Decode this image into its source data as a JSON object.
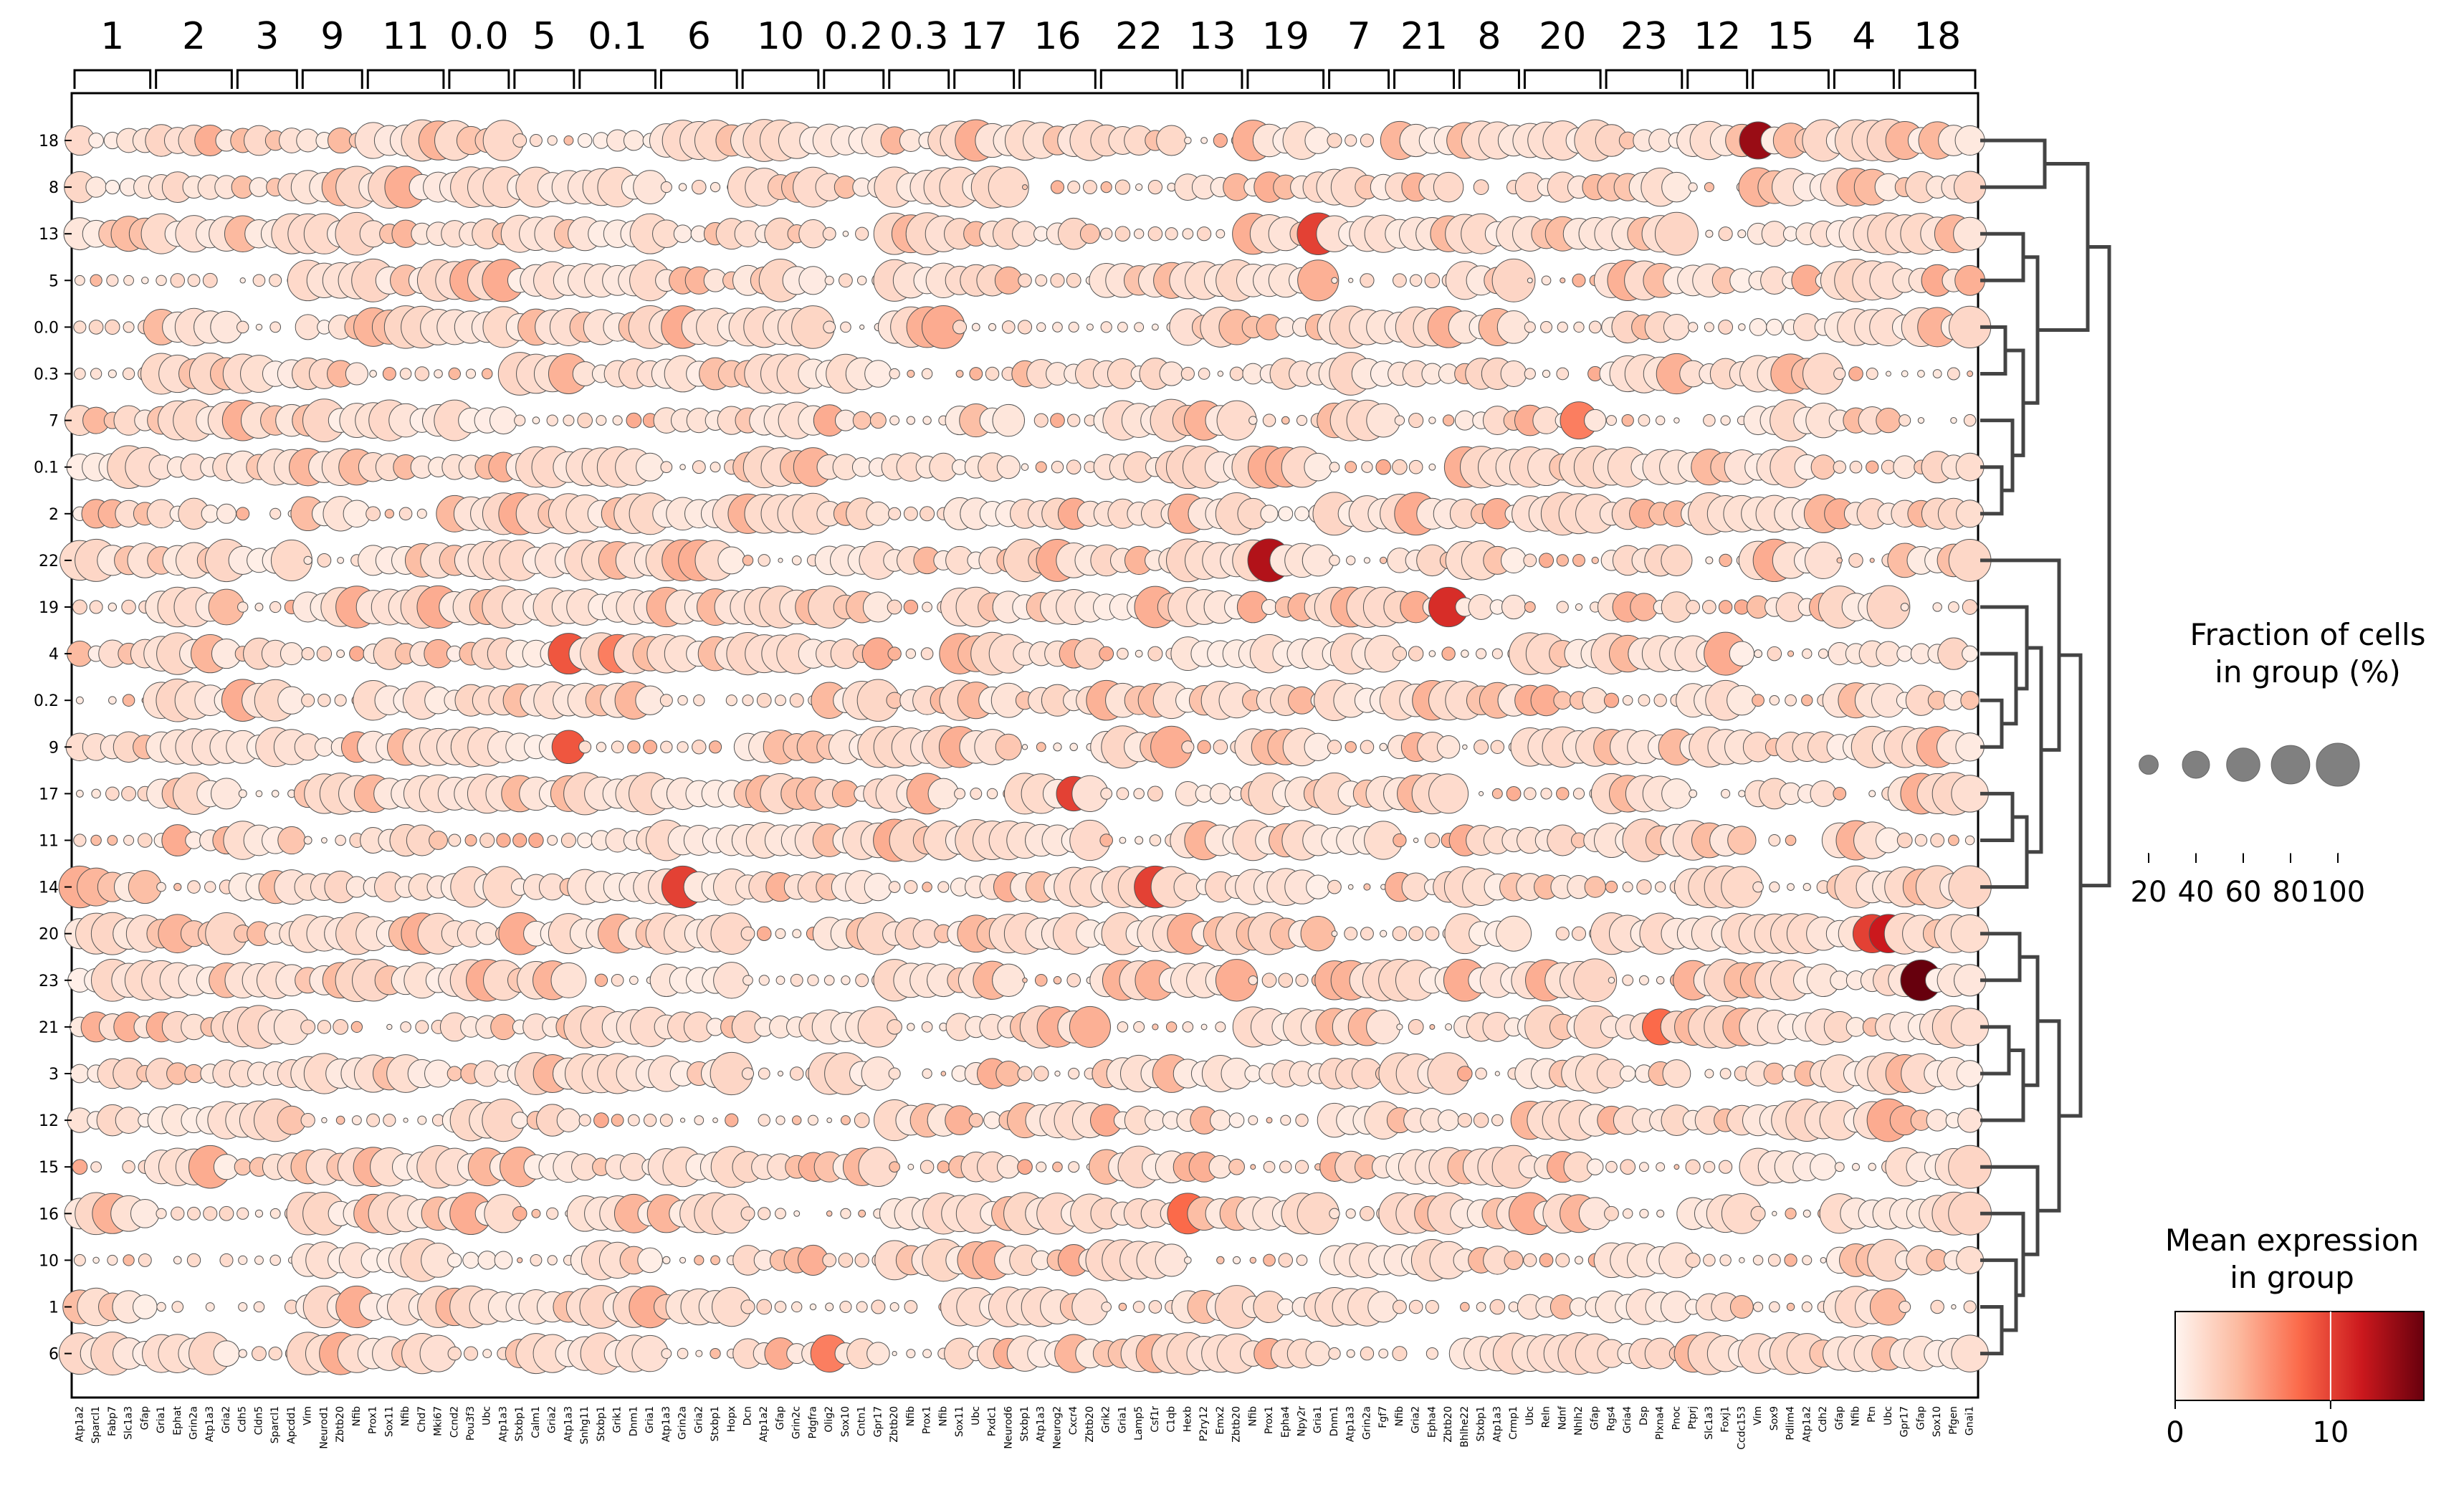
{
  "chart_data": {
    "type": "dotplot",
    "colormap": "Reds",
    "groups": [
      {
        "label": "1",
        "genes": [
          "Atp1a2",
          "Sparcl1",
          "Fabp7",
          "Slc1a3",
          "Gfap"
        ]
      },
      {
        "label": "2",
        "genes": [
          "Gria1",
          "Ephat",
          "Grin2a",
          "Atp1a3",
          "Gria2"
        ]
      },
      {
        "label": "3",
        "genes": [
          "Cdh5",
          "Cldn5",
          "Sparcl1",
          "Apcdd1"
        ]
      },
      {
        "label": "9",
        "genes": [
          "Vim",
          "Neurod1",
          "Zbtb20",
          "Nfib"
        ]
      },
      {
        "label": "11",
        "genes": [
          "Prox1",
          "Sox11",
          "Nfib",
          "Chd7",
          "Mki67"
        ]
      },
      {
        "label": "0.0",
        "genes": [
          "Ccnd2",
          "Pou3f3",
          "Ubc",
          "Atp1a3"
        ]
      },
      {
        "label": "5",
        "genes": [
          "Stxbp1",
          "Calm1",
          "Gria2",
          "Atp1a3"
        ]
      },
      {
        "label": "0.1",
        "genes": [
          "Snhg11",
          "Stxbp1",
          "Grik1",
          "Dnm1",
          "Gria1"
        ]
      },
      {
        "label": "6",
        "genes": [
          "Atp1a3",
          "Grin2a",
          "Gria2",
          "Stxbp1",
          "Hopx"
        ]
      },
      {
        "label": "10",
        "genes": [
          "Dcn",
          "Atp1a2",
          "Gfap",
          "Grin2c",
          "Pdgfra"
        ]
      },
      {
        "label": "0.2",
        "genes": [
          "Olig2",
          "Sox10",
          "Cntn1",
          "Gpr17"
        ]
      },
      {
        "label": "0.3",
        "genes": [
          "Zbtb20",
          "Nfib",
          "Prox1",
          "Nfib"
        ]
      },
      {
        "label": "17",
        "genes": [
          "Sox11",
          "Ubc",
          "Pxdc1",
          "Neurod6"
        ]
      },
      {
        "label": "16",
        "genes": [
          "Stxbp1",
          "Atp1a3",
          "Neurog2",
          "Cxcr4",
          "Zbtb20"
        ]
      },
      {
        "label": "22",
        "genes": [
          "Grik2",
          "Gria1",
          "Lamp5",
          "Csf1r",
          "C1qb"
        ]
      },
      {
        "label": "13",
        "genes": [
          "Hexb",
          "P2ry12",
          "Emx2",
          "Zbtb20"
        ]
      },
      {
        "label": "19",
        "genes": [
          "Nfib",
          "Prox1",
          "Epha4",
          "Npy2r",
          "Gria1"
        ]
      },
      {
        "label": "7",
        "genes": [
          "Dnm1",
          "Atp1a3",
          "Grin2a",
          "Fgf7"
        ]
      },
      {
        "label": "21",
        "genes": [
          "Nfib",
          "Gria2",
          "Epha4",
          "Zbtb20"
        ]
      },
      {
        "label": "8",
        "genes": [
          "Bhlhe22",
          "Stxbp1",
          "Atp1a3",
          "Crmp1"
        ]
      },
      {
        "label": "20",
        "genes": [
          "Ubc",
          "Reln",
          "Ndnf",
          "Nhlh2",
          "Gfap"
        ]
      },
      {
        "label": "23",
        "genes": [
          "Rgs4",
          "Gria4",
          "Dsp",
          "Plxna4",
          "Pnoc"
        ]
      },
      {
        "label": "12",
        "genes": [
          "Ptprj",
          "Slc1a3",
          "Foxj1",
          "Ccdc153"
        ]
      },
      {
        "label": "15",
        "genes": [
          "Vim",
          "Sox9",
          "Pdlim4",
          "Atp1a2",
          "Cdh2"
        ]
      },
      {
        "label": "4",
        "genes": [
          "Gfap",
          "Nfib",
          "Ptn",
          "Ubc"
        ]
      },
      {
        "label": "18",
        "genes": [
          "Gpr17",
          "Gfap",
          "Sox10",
          "Pfgen",
          "Gnai1"
        ]
      }
    ],
    "rows": [
      "18",
      "8",
      "13",
      "5",
      "0.0",
      "0.3",
      "7",
      "0.1",
      "2",
      "22",
      "19",
      "4",
      "0.2",
      "9",
      "17",
      "11",
      "14",
      "20",
      "23",
      "21",
      "3",
      "12",
      "15",
      "16",
      "10",
      "1",
      "6"
    ],
    "highlights": [
      {
        "row": "18",
        "gene_index": 103,
        "expression": 14,
        "fraction": 75
      },
      {
        "row": "18",
        "gene_index": 130,
        "expression": 14,
        "fraction": 70
      },
      {
        "row": "18",
        "gene_index": 134,
        "expression": 13,
        "fraction": 40
      },
      {
        "row": "13",
        "gene_index": 76,
        "expression": 10,
        "fraction": 95
      },
      {
        "row": "22",
        "gene_index": 73,
        "expression": 13,
        "fraction": 100
      },
      {
        "row": "19",
        "gene_index": 84,
        "expression": 11,
        "fraction": 85
      },
      {
        "row": "4",
        "gene_index": 30,
        "expression": 9,
        "fraction": 90
      },
      {
        "row": "4",
        "gene_index": 33,
        "expression": 7,
        "fraction": 80
      },
      {
        "row": "4",
        "gene_index": 126,
        "expression": 10,
        "fraction": 90
      },
      {
        "row": "9",
        "gene_index": 30,
        "expression": 9,
        "fraction": 60
      },
      {
        "row": "9",
        "gene_index": 126,
        "expression": 10,
        "fraction": 80
      },
      {
        "row": "17",
        "gene_index": 61,
        "expression": 10,
        "fraction": 65
      },
      {
        "row": "14",
        "gene_index": 37,
        "expression": 10,
        "fraction": 95
      },
      {
        "row": "14",
        "gene_index": 66,
        "expression": 10,
        "fraction": 95
      },
      {
        "row": "20",
        "gene_index": 110,
        "expression": 10,
        "fraction": 80
      },
      {
        "row": "20",
        "gene_index": 111,
        "expression": 12,
        "fraction": 80
      },
      {
        "row": "23",
        "gene_index": 113,
        "expression": 16,
        "fraction": 90
      },
      {
        "row": "21",
        "gene_index": 97,
        "expression": 8,
        "fraction": 70
      },
      {
        "row": "16",
        "gene_index": 68,
        "expression": 8,
        "fraction": 90
      },
      {
        "row": "7",
        "gene_index": 92,
        "expression": 7,
        "fraction": 75
      },
      {
        "row": "8",
        "gene_index": 134,
        "expression": 6,
        "fraction": 60
      },
      {
        "row": "6",
        "gene_index": 46,
        "expression": 7,
        "fraction": 75
      }
    ],
    "size_legend": {
      "title": "Fraction of cells\nin group (%)",
      "ticks": [
        20,
        40,
        60,
        80,
        100
      ]
    },
    "color_legend": {
      "title": "Mean expression\nin group",
      "ticks": [
        0,
        10
      ],
      "range": [
        0,
        16
      ]
    },
    "dendrogram": "right"
  }
}
